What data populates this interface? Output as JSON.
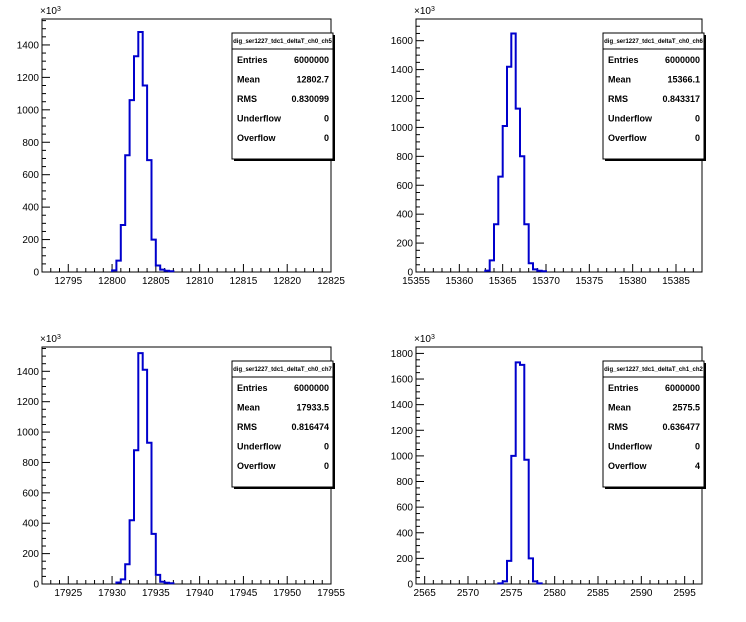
{
  "chart_data": [
    {
      "type": "histogram",
      "stats": {
        "title": "dig_ser1227_tdc1_deltaT_ch0_ch5",
        "entries": "6000000",
        "mean": "12802.7",
        "rms": "0.830099",
        "underflow": "0",
        "overflow": "0"
      },
      "y_multiplier": "×10",
      "y_multiplier_exp": "3",
      "xlim": [
        12792,
        12825
      ],
      "ylim": [
        0,
        1560
      ],
      "xticks": [
        12795,
        12800,
        12805,
        12810,
        12815,
        12820,
        12825
      ],
      "yticks": [
        0,
        200,
        400,
        600,
        800,
        1000,
        1200,
        1400
      ],
      "bin_width": 0.5,
      "bins": [
        [
          12800.0,
          10
        ],
        [
          12800.5,
          70
        ],
        [
          12801.0,
          290
        ],
        [
          12801.5,
          720
        ],
        [
          12802.0,
          1060
        ],
        [
          12802.5,
          1330
        ],
        [
          12803.0,
          1480
        ],
        [
          12803.5,
          1150
        ],
        [
          12804.0,
          690
        ],
        [
          12804.5,
          200
        ],
        [
          12805.0,
          40
        ],
        [
          12805.5,
          15
        ],
        [
          12806.0,
          8
        ],
        [
          12806.5,
          5
        ]
      ]
    },
    {
      "type": "histogram",
      "stats": {
        "title": "dig_ser1227_tdc1_deltaT_ch0_ch6",
        "entries": "6000000",
        "mean": "15366.1",
        "rms": "0.843317",
        "underflow": "0",
        "overflow": "0"
      },
      "y_multiplier": "×10",
      "y_multiplier_exp": "3",
      "xlim": [
        15355,
        15388
      ],
      "ylim": [
        0,
        1750
      ],
      "xticks": [
        15355,
        15360,
        15365,
        15370,
        15375,
        15380,
        15385
      ],
      "yticks": [
        0,
        200,
        400,
        600,
        800,
        1000,
        1200,
        1400,
        1600
      ],
      "bin_width": 0.5,
      "bins": [
        [
          15363.0,
          10
        ],
        [
          15363.5,
          80
        ],
        [
          15364.0,
          330
        ],
        [
          15364.5,
          660
        ],
        [
          15365.0,
          1010
        ],
        [
          15365.5,
          1420
        ],
        [
          15366.0,
          1650
        ],
        [
          15366.5,
          1130
        ],
        [
          15367.0,
          800
        ],
        [
          15367.5,
          330
        ],
        [
          15368.0,
          60
        ],
        [
          15368.5,
          18
        ],
        [
          15369.0,
          8
        ],
        [
          15369.5,
          5
        ]
      ]
    },
    {
      "type": "histogram",
      "stats": {
        "title": "dig_ser1227_tdc1_deltaT_ch0_ch7",
        "entries": "6000000",
        "mean": "17933.5",
        "rms": "0.816474",
        "underflow": "0",
        "overflow": "0"
      },
      "y_multiplier": "×10",
      "y_multiplier_exp": "3",
      "xlim": [
        17922,
        17955
      ],
      "ylim": [
        0,
        1560
      ],
      "xticks": [
        17925,
        17930,
        17935,
        17940,
        17945,
        17950,
        17955
      ],
      "yticks": [
        0,
        200,
        400,
        600,
        800,
        1000,
        1200,
        1400
      ],
      "bin_width": 0.5,
      "bins": [
        [
          17930.5,
          10
        ],
        [
          17931.0,
          30
        ],
        [
          17931.5,
          130
        ],
        [
          17932.0,
          420
        ],
        [
          17932.5,
          880
        ],
        [
          17933.0,
          1520
        ],
        [
          17933.5,
          1410
        ],
        [
          17934.0,
          930
        ],
        [
          17934.5,
          330
        ],
        [
          17935.0,
          60
        ],
        [
          17935.5,
          15
        ],
        [
          17936.0,
          8
        ],
        [
          17936.5,
          5
        ]
      ]
    },
    {
      "type": "histogram",
      "stats": {
        "title": "dig_ser1227_tdc1_deltaT_ch1_ch2",
        "entries": "6000000",
        "mean": "2575.5",
        "rms": "0.636477",
        "underflow": "0",
        "overflow": "4"
      },
      "y_multiplier": "×10",
      "y_multiplier_exp": "3",
      "xlim": [
        2564,
        2597
      ],
      "ylim": [
        0,
        1850
      ],
      "xticks": [
        2565,
        2570,
        2575,
        2580,
        2585,
        2590,
        2595
      ],
      "yticks": [
        0,
        200,
        400,
        600,
        800,
        1000,
        1200,
        1400,
        1600,
        1800
      ],
      "bin_width": 0.5,
      "bins": [
        [
          2573.5,
          5
        ],
        [
          2574.0,
          20
        ],
        [
          2574.5,
          180
        ],
        [
          2575.0,
          1000
        ],
        [
          2575.5,
          1730
        ],
        [
          2576.0,
          1710
        ],
        [
          2576.5,
          970
        ],
        [
          2577.0,
          200
        ],
        [
          2577.5,
          20
        ],
        [
          2578.0,
          5
        ]
      ]
    }
  ],
  "stat_labels": {
    "entries": "Entries",
    "mean": "Mean",
    "rms": "RMS",
    "underflow": "Underflow",
    "overflow": "Overflow"
  },
  "colors": {
    "line": "#0000cc",
    "axis": "#000000",
    "background": "#ffffff"
  }
}
